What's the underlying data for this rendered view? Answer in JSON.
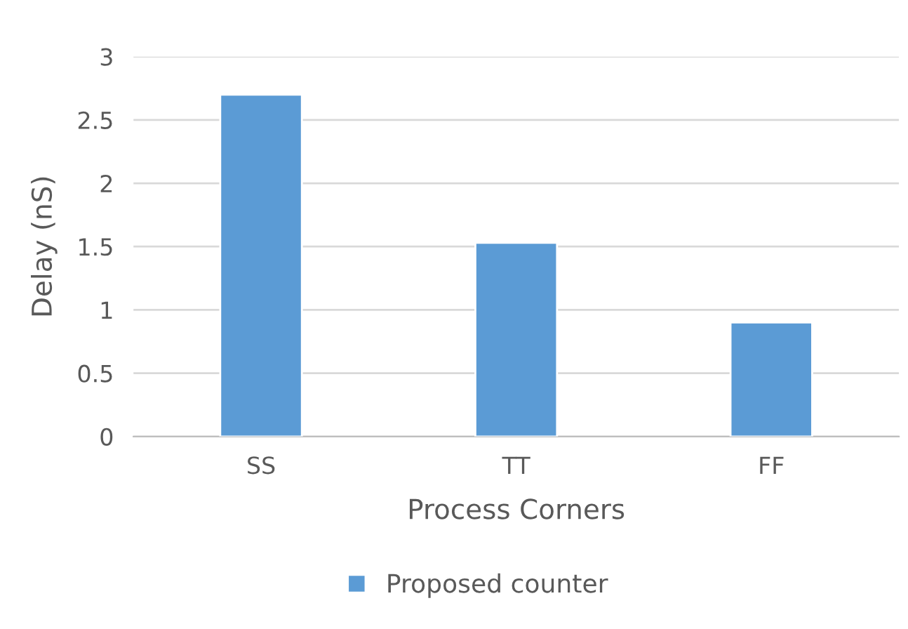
{
  "chart_data": {
    "type": "bar",
    "xlabel": "Process Corners",
    "ylabel": "Delay (nS)",
    "categories": [
      "SS",
      "TT",
      "FF"
    ],
    "series": [
      {
        "name": "Proposed counter",
        "color": "#5b9bd5",
        "values": [
          2.7,
          1.53,
          0.9
        ]
      }
    ],
    "ylim": [
      0,
      3
    ],
    "yticks": [
      0,
      0.5,
      1,
      1.5,
      2,
      2.5,
      3
    ],
    "grid": "y",
    "legend": "bottom"
  }
}
